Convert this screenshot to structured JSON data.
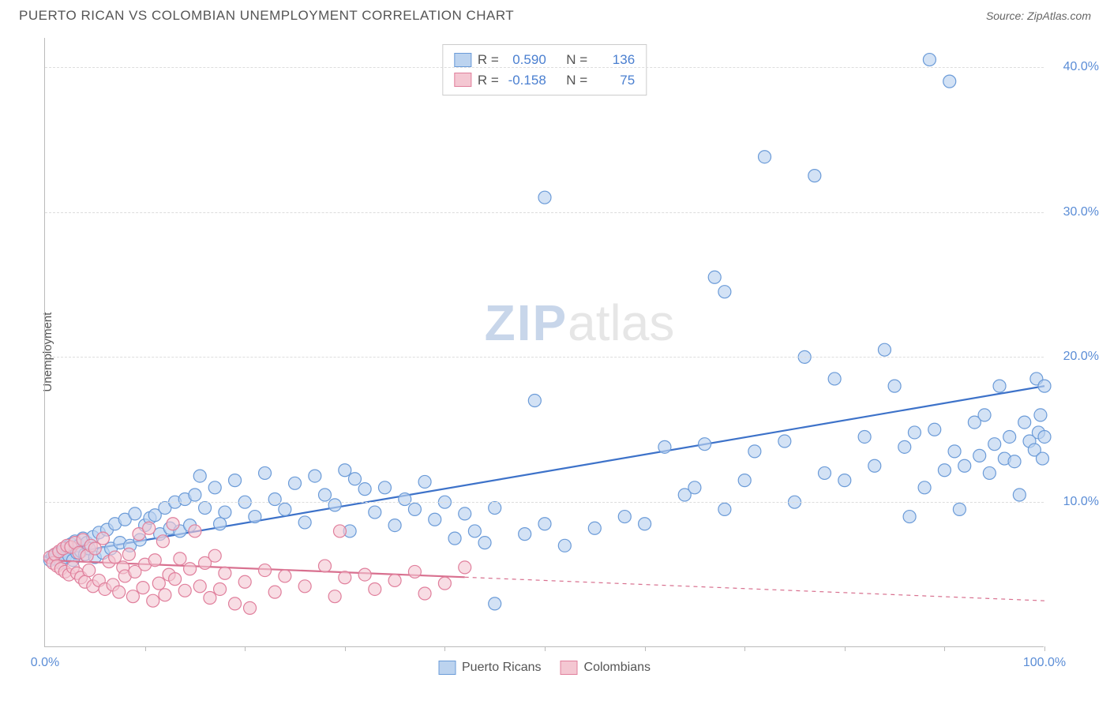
{
  "header": {
    "title": "PUERTO RICAN VS COLOMBIAN UNEMPLOYMENT CORRELATION CHART",
    "source_label": "Source: ZipAtlas.com"
  },
  "watermark": {
    "part1": "ZIP",
    "part2": "atlas"
  },
  "chart": {
    "type": "scatter",
    "ylabel": "Unemployment",
    "xlim": [
      0,
      100
    ],
    "ylim": [
      0,
      42
    ],
    "ytick_values": [
      10,
      20,
      30,
      40
    ],
    "ytick_labels": [
      "10.0%",
      "20.0%",
      "30.0%",
      "40.0%"
    ],
    "xtick_values": [
      10,
      20,
      30,
      40,
      50,
      60,
      70,
      80,
      90,
      100
    ],
    "xaxis_end_labels": {
      "left": "0.0%",
      "right": "100.0%"
    },
    "grid_color": "#dddddd",
    "axis_color": "#bbbbbb",
    "tick_label_color": "#5b8dd6",
    "background_color": "#ffffff",
    "point_radius": 8,
    "point_stroke_width": 1.2,
    "line_width": 2.2
  },
  "stats": {
    "rows": [
      {
        "swatch_fill": "#bcd3ef",
        "swatch_border": "#6b9bd8",
        "r": "0.590",
        "n": "136"
      },
      {
        "swatch_fill": "#f4c7d2",
        "swatch_border": "#e07f9c",
        "r": "-0.158",
        "n": "75"
      }
    ],
    "r_label": "R =",
    "n_label": "N ="
  },
  "legend": {
    "items": [
      {
        "label": "Puerto Ricans",
        "fill": "#bcd3ef",
        "border": "#6b9bd8"
      },
      {
        "label": "Colombians",
        "fill": "#f4c7d2",
        "border": "#e07f9c"
      }
    ]
  },
  "series": [
    {
      "name": "Puerto Ricans",
      "fill": "#bcd3ef",
      "stroke": "#6b9bd8",
      "fill_opacity": 0.65,
      "trend": {
        "x1": 0,
        "y1": 6.2,
        "x2": 100,
        "y2": 18.0,
        "solid_until_x": 100,
        "color": "#3d72c9"
      },
      "points": [
        [
          0.5,
          6.0
        ],
        [
          0.8,
          6.3
        ],
        [
          1.0,
          6.1
        ],
        [
          1.2,
          6.4
        ],
        [
          1.4,
          6.5
        ],
        [
          1.6,
          5.8
        ],
        [
          1.8,
          6.6
        ],
        [
          2.0,
          6.2
        ],
        [
          2.2,
          6.9
        ],
        [
          2.4,
          6.3
        ],
        [
          2.6,
          7.1
        ],
        [
          2.8,
          6.0
        ],
        [
          3.0,
          7.3
        ],
        [
          3.2,
          6.5
        ],
        [
          3.4,
          7.0
        ],
        [
          3.6,
          6.6
        ],
        [
          3.8,
          7.5
        ],
        [
          4.0,
          6.4
        ],
        [
          4.2,
          7.2
        ],
        [
          4.4,
          6.8
        ],
        [
          4.8,
          7.6
        ],
        [
          5.0,
          6.2
        ],
        [
          5.4,
          7.9
        ],
        [
          5.8,
          6.5
        ],
        [
          6.2,
          8.1
        ],
        [
          6.6,
          6.8
        ],
        [
          7.0,
          8.5
        ],
        [
          7.5,
          7.2
        ],
        [
          8.0,
          8.8
        ],
        [
          8.5,
          7.0
        ],
        [
          9.0,
          9.2
        ],
        [
          9.5,
          7.4
        ],
        [
          10.0,
          8.4
        ],
        [
          10.5,
          8.9
        ],
        [
          11.0,
          9.1
        ],
        [
          11.5,
          7.8
        ],
        [
          12.0,
          9.6
        ],
        [
          12.5,
          8.2
        ],
        [
          13.0,
          10.0
        ],
        [
          13.5,
          8.0
        ],
        [
          14.0,
          10.2
        ],
        [
          14.5,
          8.4
        ],
        [
          15.0,
          10.5
        ],
        [
          15.5,
          11.8
        ],
        [
          16.0,
          9.6
        ],
        [
          17.0,
          11.0
        ],
        [
          17.5,
          8.5
        ],
        [
          18.0,
          9.3
        ],
        [
          19.0,
          11.5
        ],
        [
          20.0,
          10.0
        ],
        [
          21.0,
          9.0
        ],
        [
          22.0,
          12.0
        ],
        [
          23.0,
          10.2
        ],
        [
          24.0,
          9.5
        ],
        [
          25.0,
          11.3
        ],
        [
          26.0,
          8.6
        ],
        [
          27.0,
          11.8
        ],
        [
          28.0,
          10.5
        ],
        [
          29.0,
          9.8
        ],
        [
          30.0,
          12.2
        ],
        [
          30.5,
          8.0
        ],
        [
          31.0,
          11.6
        ],
        [
          32.0,
          10.9
        ],
        [
          33.0,
          9.3
        ],
        [
          34.0,
          11.0
        ],
        [
          35.0,
          8.4
        ],
        [
          36.0,
          10.2
        ],
        [
          37.0,
          9.5
        ],
        [
          38.0,
          11.4
        ],
        [
          39.0,
          8.8
        ],
        [
          40.0,
          10.0
        ],
        [
          41.0,
          7.5
        ],
        [
          42.0,
          9.2
        ],
        [
          43.0,
          8.0
        ],
        [
          44.0,
          7.2
        ],
        [
          45.0,
          9.6
        ],
        [
          45.0,
          3.0
        ],
        [
          48.0,
          7.8
        ],
        [
          49.0,
          17.0
        ],
        [
          50.0,
          8.5
        ],
        [
          50.0,
          31.0
        ],
        [
          52.0,
          7.0
        ],
        [
          55.0,
          8.2
        ],
        [
          58.0,
          9.0
        ],
        [
          60.0,
          8.5
        ],
        [
          62.0,
          13.8
        ],
        [
          64.0,
          10.5
        ],
        [
          65.0,
          11.0
        ],
        [
          66.0,
          14.0
        ],
        [
          67.0,
          25.5
        ],
        [
          68.0,
          9.5
        ],
        [
          68.0,
          24.5
        ],
        [
          70.0,
          11.5
        ],
        [
          71.0,
          13.5
        ],
        [
          72.0,
          33.8
        ],
        [
          74.0,
          14.2
        ],
        [
          75.0,
          10.0
        ],
        [
          76.0,
          20.0
        ],
        [
          77.0,
          32.5
        ],
        [
          78.0,
          12.0
        ],
        [
          79.0,
          18.5
        ],
        [
          80.0,
          11.5
        ],
        [
          82.0,
          14.5
        ],
        [
          83.0,
          12.5
        ],
        [
          84.0,
          20.5
        ],
        [
          85.0,
          18.0
        ],
        [
          86.0,
          13.8
        ],
        [
          86.5,
          9.0
        ],
        [
          87.0,
          14.8
        ],
        [
          88.0,
          11.0
        ],
        [
          88.5,
          40.5
        ],
        [
          89.0,
          15.0
        ],
        [
          90.0,
          12.2
        ],
        [
          90.5,
          39.0
        ],
        [
          91.0,
          13.5
        ],
        [
          91.5,
          9.5
        ],
        [
          92.0,
          12.5
        ],
        [
          93.0,
          15.5
        ],
        [
          93.5,
          13.2
        ],
        [
          94.0,
          16.0
        ],
        [
          94.5,
          12.0
        ],
        [
          95.0,
          14.0
        ],
        [
          95.5,
          18.0
        ],
        [
          96.0,
          13.0
        ],
        [
          96.5,
          14.5
        ],
        [
          97.0,
          12.8
        ],
        [
          97.5,
          10.5
        ],
        [
          98.0,
          15.5
        ],
        [
          98.5,
          14.2
        ],
        [
          99.0,
          13.6
        ],
        [
          99.2,
          18.5
        ],
        [
          99.4,
          14.8
        ],
        [
          99.6,
          16.0
        ],
        [
          99.8,
          13.0
        ],
        [
          100.0,
          14.5
        ],
        [
          100.0,
          18.0
        ]
      ]
    },
    {
      "name": "Colombians",
      "fill": "#f4c7d2",
      "stroke": "#e07f9c",
      "fill_opacity": 0.6,
      "trend": {
        "x1": 0,
        "y1": 6.0,
        "x2": 100,
        "y2": 3.2,
        "solid_until_x": 42,
        "color": "#d8708f"
      },
      "points": [
        [
          0.5,
          6.2
        ],
        [
          0.8,
          5.8
        ],
        [
          1.0,
          6.4
        ],
        [
          1.2,
          5.6
        ],
        [
          1.4,
          6.6
        ],
        [
          1.6,
          5.4
        ],
        [
          1.8,
          6.8
        ],
        [
          2.0,
          5.2
        ],
        [
          2.2,
          7.0
        ],
        [
          2.4,
          5.0
        ],
        [
          2.6,
          6.9
        ],
        [
          2.8,
          5.5
        ],
        [
          3.0,
          7.2
        ],
        [
          3.2,
          5.1
        ],
        [
          3.4,
          6.5
        ],
        [
          3.6,
          4.8
        ],
        [
          3.8,
          7.4
        ],
        [
          4.0,
          4.5
        ],
        [
          4.2,
          6.3
        ],
        [
          4.4,
          5.3
        ],
        [
          4.6,
          7.0
        ],
        [
          4.8,
          4.2
        ],
        [
          5.0,
          6.8
        ],
        [
          5.4,
          4.6
        ],
        [
          5.8,
          7.5
        ],
        [
          6.0,
          4.0
        ],
        [
          6.4,
          5.9
        ],
        [
          6.8,
          4.3
        ],
        [
          7.0,
          6.2
        ],
        [
          7.4,
          3.8
        ],
        [
          7.8,
          5.5
        ],
        [
          8.0,
          4.9
        ],
        [
          8.4,
          6.4
        ],
        [
          8.8,
          3.5
        ],
        [
          9.0,
          5.2
        ],
        [
          9.4,
          7.8
        ],
        [
          9.8,
          4.1
        ],
        [
          10.0,
          5.7
        ],
        [
          10.4,
          8.2
        ],
        [
          10.8,
          3.2
        ],
        [
          11.0,
          6.0
        ],
        [
          11.4,
          4.4
        ],
        [
          11.8,
          7.3
        ],
        [
          12.0,
          3.6
        ],
        [
          12.4,
          5.0
        ],
        [
          12.8,
          8.5
        ],
        [
          13.0,
          4.7
        ],
        [
          13.5,
          6.1
        ],
        [
          14.0,
          3.9
        ],
        [
          14.5,
          5.4
        ],
        [
          15.0,
          8.0
        ],
        [
          15.5,
          4.2
        ],
        [
          16.0,
          5.8
        ],
        [
          16.5,
          3.4
        ],
        [
          17.0,
          6.3
        ],
        [
          17.5,
          4.0
        ],
        [
          18.0,
          5.1
        ],
        [
          19.0,
          3.0
        ],
        [
          20.0,
          4.5
        ],
        [
          20.5,
          2.7
        ],
        [
          22.0,
          5.3
        ],
        [
          23.0,
          3.8
        ],
        [
          24.0,
          4.9
        ],
        [
          26.0,
          4.2
        ],
        [
          28.0,
          5.6
        ],
        [
          29.0,
          3.5
        ],
        [
          29.5,
          8.0
        ],
        [
          30.0,
          4.8
        ],
        [
          32.0,
          5.0
        ],
        [
          33.0,
          4.0
        ],
        [
          35.0,
          4.6
        ],
        [
          37.0,
          5.2
        ],
        [
          38.0,
          3.7
        ],
        [
          40.0,
          4.4
        ],
        [
          42.0,
          5.5
        ]
      ]
    }
  ]
}
